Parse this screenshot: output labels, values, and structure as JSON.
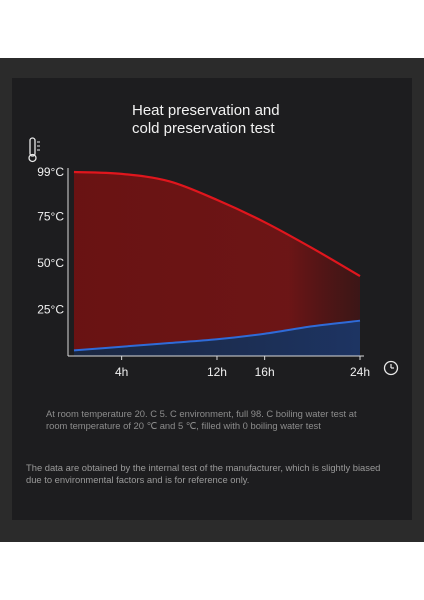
{
  "colors": {
    "background": "#2b2b2b",
    "panel": "#1d1d1f",
    "hot_line": "#e0161d",
    "cold_line": "#2f6bd8",
    "text": "#f2f2f2",
    "note_text": "#8d8d8d"
  },
  "icons": {
    "thermometer": "thermometer-icon",
    "clock": "clock-icon"
  },
  "chart_data": {
    "type": "area",
    "title_lines": [
      "Heat preservation and",
      "cold preservation test"
    ],
    "x": [
      0,
      4,
      8,
      12,
      16,
      20,
      24
    ],
    "x_ticks": [
      4,
      12,
      16,
      24
    ],
    "x_tick_labels": [
      "4h",
      "12h",
      "16h",
      "24h"
    ],
    "y_ticks": [
      25,
      50,
      75,
      99
    ],
    "y_tick_labels": [
      "25°C",
      "50°C",
      "75°C",
      "99°C"
    ],
    "xlim": [
      -0.5,
      24
    ],
    "ylim": [
      0,
      99
    ],
    "grid": false,
    "series": [
      {
        "values": [
          99,
          98,
          94,
          84,
          72,
          58,
          43
        ],
        "color": "#e0161d",
        "fill": "#7a1414"
      },
      {
        "values": [
          3,
          5,
          7,
          9,
          12,
          16,
          19
        ],
        "color": "#2f6bd8",
        "fill": "#1d3566"
      }
    ]
  },
  "notes": {
    "test_conditions": "At room temperature 20. C 5. C environment, full 98. C boiling water test at room temperature of 20 ℃ and 5 ℃, filled with 0 boiling water test",
    "disclaimer": "The data are obtained by the internal test of the manufacturer, which is slightly biased due to environmental factors and is for reference only."
  }
}
